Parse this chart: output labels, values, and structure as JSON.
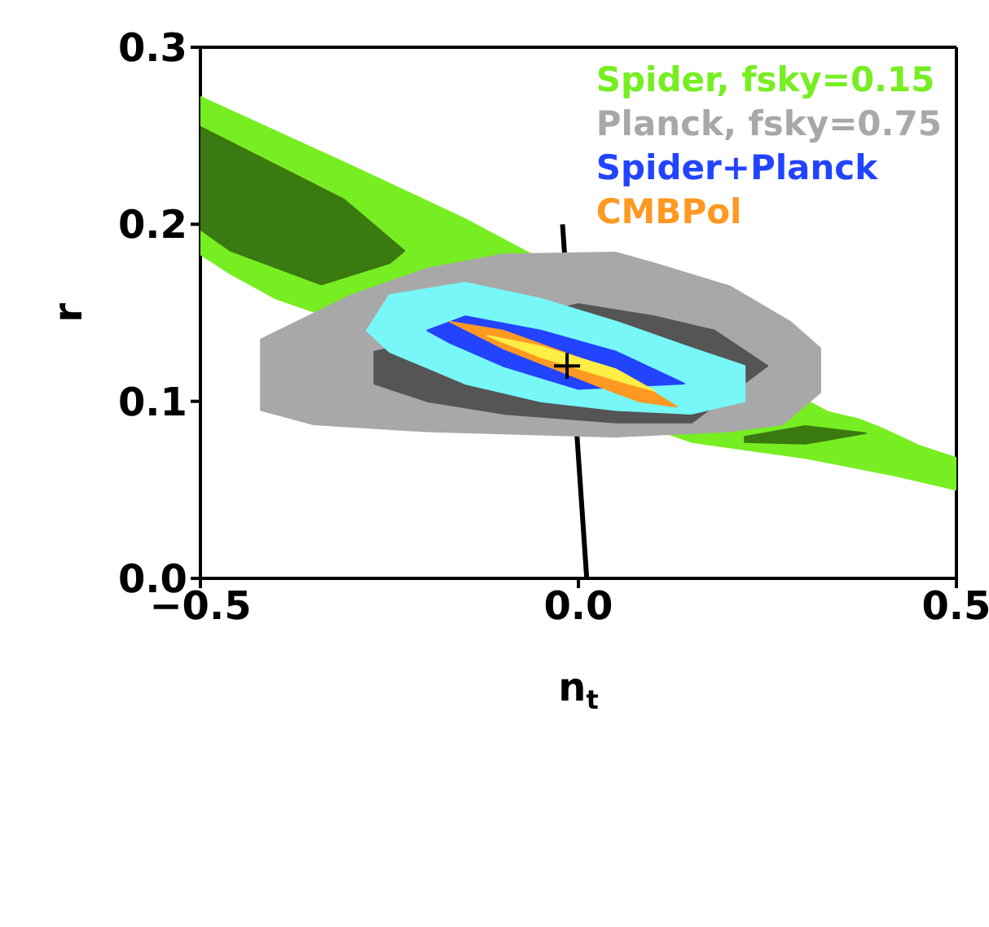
{
  "chart_data": {
    "type": "area",
    "xlabel": "n$_{t}$",
    "ylabel": "r",
    "xlim": [
      -0.5,
      0.5
    ],
    "ylim": [
      0,
      0.3
    ],
    "xticks": [
      {
        "value": -0.5,
        "label": "−0.5"
      },
      {
        "value": 0,
        "label": "0.0"
      },
      {
        "value": 0.5,
        "label": "0.5"
      }
    ],
    "yticks": [
      {
        "value": 0,
        "label": "0.0"
      },
      {
        "value": 0.1,
        "label": "0.1"
      },
      {
        "value": 0.2,
        "label": "0.2"
      },
      {
        "value": 0.3,
        "label": "0.3"
      }
    ],
    "legend": "top right",
    "series": [
      {
        "name": "Spider, fsky=0.15",
        "color": "#77ee22",
        "x": [
          -0.5,
          -0.3,
          -0.15,
          0.33,
          0.37,
          0.4,
          0.45,
          0.5,
          0.5,
          0.42,
          0.3,
          0.15,
          -0.4,
          -0.46,
          -0.5
        ],
        "values": [
          0.272,
          0.233,
          0.203,
          0.094,
          0.09,
          0.085,
          0.075,
          0.068,
          0.05,
          0.058,
          0.068,
          0.077,
          0.158,
          0.172,
          0.183
        ]
      },
      {
        "color": "#3a7a10",
        "x": [
          -0.5,
          -0.31,
          -0.23,
          -0.25,
          -0.34,
          -0.46,
          -0.5
        ],
        "values": [
          0.255,
          0.214,
          0.185,
          0.178,
          0.166,
          0.185,
          0.197
        ]
      },
      {
        "color": "#3a7a10",
        "x": [
          0.22,
          0.3,
          0.38,
          0.3,
          0.22
        ],
        "values": [
          0.08,
          0.086,
          0.082,
          0.076,
          0.077
        ]
      },
      {
        "name": "Planck, fsky=0.75",
        "color": "#a8a8a8",
        "x": [
          -0.42,
          -0.3,
          -0.2,
          -0.1,
          0.05,
          0.1,
          0.2,
          0.28,
          0.32,
          0.32,
          0.27,
          0.2,
          0.05,
          -0.2,
          -0.35,
          -0.42
        ],
        "values": [
          0.135,
          0.16,
          0.175,
          0.183,
          0.184,
          0.178,
          0.165,
          0.145,
          0.13,
          0.105,
          0.087,
          0.083,
          0.08,
          0.083,
          0.087,
          0.095
        ]
      },
      {
        "color": "#555555",
        "x": [
          -0.27,
          -0.27,
          -0.2,
          -0.1,
          0.05,
          0.15,
          0.25,
          0.18,
          0.1,
          0
        ],
        "values": [
          0.128,
          0.11,
          0.1,
          0.093,
          0.088,
          0.088,
          0.12,
          0.14,
          0.148,
          0.155
        ]
      },
      {
        "color": "#77f7f7",
        "x": [
          -0.28,
          -0.25,
          -0.15,
          -0.05,
          0.05,
          0.15,
          0.22,
          0.22,
          0.15,
          0.05,
          -0.05,
          -0.15,
          -0.25
        ],
        "values": [
          0.14,
          0.16,
          0.167,
          0.158,
          0.145,
          0.13,
          0.12,
          0.1,
          0.093,
          0.095,
          0.1,
          0.11,
          0.128
        ]
      },
      {
        "name": "Spider+Planck",
        "color": "#2244ff",
        "x": [
          -0.2,
          -0.15,
          -0.05,
          0.05,
          0.14,
          0.0,
          -0.1,
          -0.17
        ],
        "values": [
          0.14,
          0.148,
          0.14,
          0.128,
          0.11,
          0.107,
          0.12,
          0.133
        ]
      },
      {
        "name": "CMBPol",
        "color": "#ff9922",
        "x": [
          -0.17,
          -0.1,
          0.03,
          0.1,
          0.13,
          0.08,
          0.03,
          -0.1
        ],
        "values": [
          0.145,
          0.14,
          0.12,
          0.105,
          0.097,
          0.1,
          0.108,
          0.13
        ]
      },
      {
        "color": "#ffee44",
        "x": [
          -0.12,
          -0.05,
          0.05,
          0.1,
          0.05,
          -0.05
        ],
        "values": [
          0.137,
          0.131,
          0.118,
          0.106,
          0.112,
          0.125
        ]
      },
      {
        "type": "line",
        "color": "#000000",
        "x": [
          -0.021,
          0.011
        ],
        "values": [
          0.2,
          0
        ]
      },
      {
        "type": "scatter",
        "color": "#000000",
        "marker": "cross",
        "x": [
          -0.015
        ],
        "values": [
          0.12
        ]
      }
    ]
  }
}
